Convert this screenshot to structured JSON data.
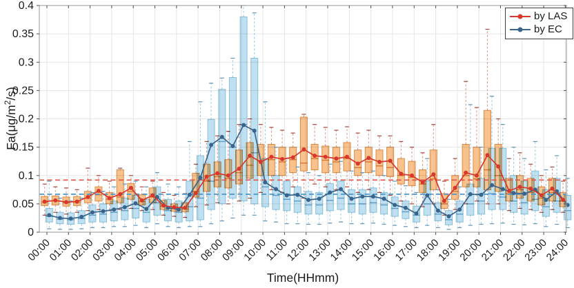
{
  "axes": {
    "x_title": "Time(HHmm)",
    "y_title_parts": [
      "Fa(μg/m",
      "2",
      "/s)"
    ]
  },
  "chart_data": {
    "type": "box+line",
    "title": "",
    "xlabel": "Time(HHmm)",
    "ylabel": "Fa(μg/m²/s)",
    "xlim": [
      -0.35,
      24.05
    ],
    "ylim": [
      0,
      0.4
    ],
    "grid": true,
    "x_tick_labels": [
      "00:00",
      "01:00",
      "02:00",
      "03:00",
      "04:00",
      "05:00",
      "06:00",
      "07:00",
      "08:00",
      "09:00",
      "10:00",
      "11:00",
      "12:00",
      "13:00",
      "14:00",
      "15:00",
      "16:00",
      "17:00",
      "18:00",
      "19:00",
      "20:00",
      "21:00",
      "22:00",
      "23:00",
      "24:00"
    ],
    "y_tick_labels": [
      "0",
      "0.05",
      "0.1",
      "0.15",
      "0.2",
      "0.25",
      "0.3",
      "0.35",
      "0.4"
    ],
    "time_start_hour": 0,
    "time_step_hours": 0.5,
    "n_points": 49,
    "legend": {
      "position": "top-right",
      "entries": [
        "by LAS",
        "by EC"
      ]
    },
    "reference_lines": [
      {
        "series": "by LAS",
        "value": 0.092,
        "color": "#e0544a",
        "style": "dashed"
      },
      {
        "series": "by EC",
        "value": 0.067,
        "color": "#4d94c8",
        "style": "dashed"
      }
    ],
    "series": [
      {
        "name": "by LAS",
        "line_color": "#d7382b",
        "box_fill": "#f9c18c",
        "box_edge": "#dd8b43",
        "median_color": "#e29b57",
        "whisker_color": "#dc9c92",
        "cap_color": "#a8453a",
        "mean": [
          0.054,
          0.056,
          0.053,
          0.054,
          0.062,
          0.073,
          0.06,
          0.067,
          0.078,
          0.056,
          0.065,
          0.047,
          0.044,
          0.043,
          0.069,
          0.098,
          0.104,
          0.1,
          0.112,
          0.135,
          0.124,
          0.133,
          0.129,
          0.132,
          0.146,
          0.135,
          0.133,
          0.13,
          0.133,
          0.121,
          0.131,
          0.124,
          0.126,
          0.103,
          0.1,
          0.088,
          0.102,
          0.055,
          0.078,
          0.105,
          0.1,
          0.136,
          0.116,
          0.073,
          0.08,
          0.077,
          0.065,
          0.077,
          0.057
        ],
        "box_stats_q1_med_q3_lo_hi": [
          [
            0.047,
            0.053,
            0.063,
            0.03,
            0.085
          ],
          [
            0.048,
            0.055,
            0.064,
            0.035,
            0.08
          ],
          [
            0.046,
            0.052,
            0.062,
            0.032,
            0.078
          ],
          [
            0.047,
            0.053,
            0.063,
            0.035,
            0.075
          ],
          [
            0.052,
            0.06,
            0.072,
            0.038,
            0.113
          ],
          [
            0.055,
            0.066,
            0.08,
            0.04,
            0.1
          ],
          [
            0.05,
            0.058,
            0.07,
            0.038,
            0.09
          ],
          [
            0.052,
            0.062,
            0.11,
            0.04,
            0.113
          ],
          [
            0.058,
            0.072,
            0.086,
            0.042,
            0.1
          ],
          [
            0.048,
            0.054,
            0.066,
            0.038,
            0.08
          ],
          [
            0.052,
            0.062,
            0.078,
            0.04,
            0.09
          ],
          [
            0.04,
            0.046,
            0.056,
            0.03,
            0.07
          ],
          [
            0.037,
            0.042,
            0.05,
            0.028,
            0.065
          ],
          [
            0.036,
            0.041,
            0.052,
            0.026,
            0.068
          ],
          [
            0.062,
            0.072,
            0.104,
            0.045,
            0.12
          ],
          [
            0.072,
            0.09,
            0.12,
            0.048,
            0.16
          ],
          [
            0.08,
            0.098,
            0.124,
            0.052,
            0.17
          ],
          [
            0.078,
            0.095,
            0.128,
            0.05,
            0.178
          ],
          [
            0.085,
            0.105,
            0.145,
            0.055,
            0.19
          ],
          [
            0.095,
            0.118,
            0.158,
            0.06,
            0.2
          ],
          [
            0.1,
            0.126,
            0.155,
            0.07,
            0.19
          ],
          [
            0.1,
            0.128,
            0.155,
            0.075,
            0.185
          ],
          [
            0.1,
            0.124,
            0.15,
            0.07,
            0.18
          ],
          [
            0.105,
            0.128,
            0.15,
            0.08,
            0.175
          ],
          [
            0.108,
            0.122,
            0.203,
            0.06,
            0.208
          ],
          [
            0.11,
            0.13,
            0.155,
            0.085,
            0.19
          ],
          [
            0.105,
            0.127,
            0.152,
            0.08,
            0.185
          ],
          [
            0.105,
            0.124,
            0.15,
            0.075,
            0.18
          ],
          [
            0.108,
            0.13,
            0.158,
            0.08,
            0.186
          ],
          [
            0.1,
            0.114,
            0.145,
            0.07,
            0.175
          ],
          [
            0.105,
            0.124,
            0.15,
            0.075,
            0.18
          ],
          [
            0.1,
            0.117,
            0.145,
            0.07,
            0.17
          ],
          [
            0.098,
            0.114,
            0.15,
            0.065,
            0.17
          ],
          [
            0.085,
            0.1,
            0.13,
            0.055,
            0.16
          ],
          [
            0.082,
            0.097,
            0.125,
            0.05,
            0.15
          ],
          [
            0.07,
            0.085,
            0.11,
            0.045,
            0.14
          ],
          [
            0.075,
            0.094,
            0.145,
            0.05,
            0.19
          ],
          [
            0.042,
            0.05,
            0.068,
            0.03,
            0.09
          ],
          [
            0.058,
            0.072,
            0.1,
            0.04,
            0.13
          ],
          [
            0.08,
            0.1,
            0.155,
            0.05,
            0.266
          ],
          [
            0.08,
            0.094,
            0.15,
            0.055,
            0.22
          ],
          [
            0.075,
            0.11,
            0.215,
            0.05,
            0.358
          ],
          [
            0.072,
            0.1,
            0.155,
            0.05,
            0.2
          ],
          [
            0.055,
            0.068,
            0.095,
            0.038,
            0.13
          ],
          [
            0.06,
            0.075,
            0.1,
            0.042,
            0.14
          ],
          [
            0.055,
            0.07,
            0.095,
            0.04,
            0.12
          ],
          [
            0.048,
            0.06,
            0.08,
            0.035,
            0.1
          ],
          [
            0.055,
            0.07,
            0.095,
            0.04,
            0.115
          ],
          [
            0.045,
            0.055,
            0.07,
            0.035,
            0.09
          ]
        ]
      },
      {
        "name": "by EC",
        "line_color": "#39648c",
        "box_fill": "#bfe0f1",
        "box_edge": "#88c0db",
        "median_color": "#7ab2d3",
        "whisker_color": "#a5cbdf",
        "cap_color": "#5f94b8",
        "mean": [
          0.03,
          0.025,
          0.024,
          0.027,
          0.035,
          0.037,
          0.04,
          0.044,
          0.051,
          0.041,
          0.062,
          0.043,
          0.04,
          0.066,
          0.096,
          0.154,
          0.168,
          0.152,
          0.189,
          0.179,
          0.088,
          0.076,
          0.065,
          0.066,
          0.057,
          0.059,
          0.07,
          0.076,
          0.059,
          0.063,
          0.063,
          0.059,
          0.048,
          0.043,
          0.033,
          0.065,
          0.038,
          0.028,
          0.04,
          0.067,
          0.066,
          0.083,
          0.076,
          0.069,
          0.068,
          0.075,
          0.057,
          0.072,
          0.048
        ],
        "box_stats_q1_med_q3_lo_hi": [
          [
            0.018,
            0.028,
            0.042,
            0.006,
            0.09
          ],
          [
            0.015,
            0.023,
            0.035,
            0.005,
            0.06
          ],
          [
            0.014,
            0.022,
            0.034,
            0.005,
            0.055
          ],
          [
            0.015,
            0.024,
            0.038,
            0.006,
            0.06
          ],
          [
            0.018,
            0.03,
            0.048,
            0.008,
            0.07
          ],
          [
            0.018,
            0.032,
            0.05,
            0.008,
            0.072
          ],
          [
            0.02,
            0.035,
            0.055,
            0.01,
            0.08
          ],
          [
            0.022,
            0.038,
            0.06,
            0.01,
            0.085
          ],
          [
            0.025,
            0.042,
            0.065,
            0.012,
            0.09
          ],
          [
            0.018,
            0.035,
            0.058,
            0.008,
            0.08
          ],
          [
            0.03,
            0.052,
            0.08,
            0.015,
            0.105
          ],
          [
            0.02,
            0.038,
            0.058,
            0.01,
            0.085
          ],
          [
            0.018,
            0.035,
            0.055,
            0.008,
            0.08
          ],
          [
            0.02,
            0.045,
            0.09,
            0.01,
            0.16
          ],
          [
            0.022,
            0.06,
            0.135,
            0.01,
            0.23
          ],
          [
            0.04,
            0.09,
            0.199,
            0.015,
            0.263
          ],
          [
            0.05,
            0.16,
            0.252,
            0.02,
            0.272
          ],
          [
            0.06,
            0.15,
            0.273,
            0.025,
            0.307
          ],
          [
            0.055,
            0.19,
            0.38,
            0.03,
            0.4
          ],
          [
            0.05,
            0.14,
            0.307,
            0.03,
            0.387
          ],
          [
            0.045,
            0.08,
            0.13,
            0.02,
            0.23
          ],
          [
            0.04,
            0.065,
            0.1,
            0.018,
            0.15
          ],
          [
            0.038,
            0.058,
            0.09,
            0.015,
            0.13
          ],
          [
            0.035,
            0.055,
            0.08,
            0.015,
            0.115
          ],
          [
            0.032,
            0.048,
            0.072,
            0.014,
            0.105
          ],
          [
            0.032,
            0.048,
            0.07,
            0.014,
            0.1
          ],
          [
            0.038,
            0.056,
            0.086,
            0.016,
            0.12
          ],
          [
            0.04,
            0.06,
            0.09,
            0.018,
            0.125
          ],
          [
            0.035,
            0.05,
            0.075,
            0.015,
            0.108
          ],
          [
            0.032,
            0.05,
            0.075,
            0.015,
            0.105
          ],
          [
            0.035,
            0.052,
            0.078,
            0.016,
            0.108
          ],
          [
            0.032,
            0.048,
            0.07,
            0.014,
            0.1
          ],
          [
            0.028,
            0.042,
            0.062,
            0.012,
            0.09
          ],
          [
            0.024,
            0.036,
            0.055,
            0.01,
            0.082
          ],
          [
            0.018,
            0.03,
            0.046,
            0.008,
            0.07
          ],
          [
            0.03,
            0.05,
            0.09,
            0.012,
            0.13
          ],
          [
            0.02,
            0.032,
            0.052,
            0.008,
            0.075
          ],
          [
            0.013,
            0.022,
            0.038,
            0.005,
            0.058
          ],
          [
            0.018,
            0.032,
            0.055,
            0.008,
            0.08
          ],
          [
            0.03,
            0.05,
            0.085,
            0.012,
            0.225
          ],
          [
            0.032,
            0.055,
            0.095,
            0.014,
            0.15
          ],
          [
            0.04,
            0.068,
            0.148,
            0.015,
            0.24
          ],
          [
            0.04,
            0.062,
            0.148,
            0.016,
            0.19
          ],
          [
            0.035,
            0.055,
            0.1,
            0.014,
            0.15
          ],
          [
            0.032,
            0.052,
            0.09,
            0.013,
            0.13
          ],
          [
            0.038,
            0.058,
            0.108,
            0.015,
            0.16
          ],
          [
            0.028,
            0.045,
            0.075,
            0.01,
            0.11
          ],
          [
            0.035,
            0.055,
            0.095,
            0.014,
            0.135
          ],
          [
            0.022,
            0.038,
            0.065,
            0.008,
            0.095
          ]
        ]
      }
    ]
  }
}
